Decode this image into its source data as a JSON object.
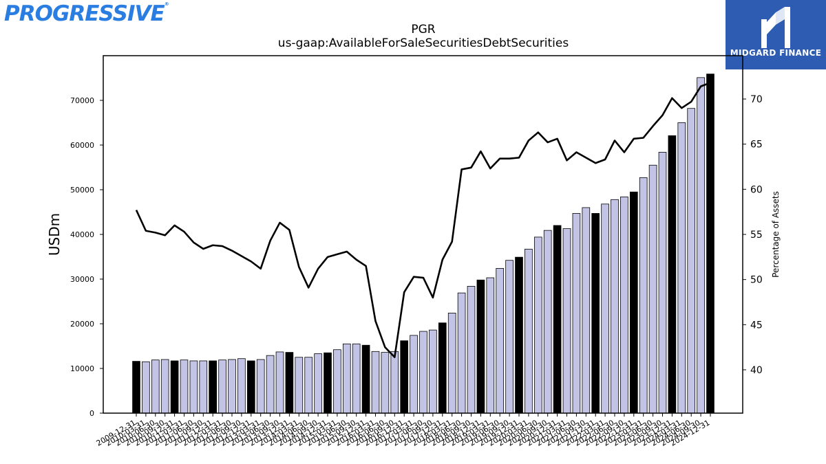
{
  "header": {
    "logo_text": "PROGRESSIVE",
    "badge_text": "MIDGARD FINANCE"
  },
  "chart_data": {
    "type": "bar",
    "title": "PGR",
    "subtitle": "us-gaap:AvailableForSaleSecuritiesDebtSecurities",
    "ylabel": "USDm",
    "y2label": "Percentage of Assets",
    "ylim": [
      0,
      80000
    ],
    "y2lim": [
      35.2,
      74.8
    ],
    "yticks": [
      0,
      10000,
      20000,
      30000,
      40000,
      50000,
      60000,
      70000
    ],
    "y2ticks": [
      40,
      45,
      50,
      55,
      60,
      65,
      70
    ],
    "grid": false,
    "legend": "none",
    "categories": [
      "2009-12-31",
      "2010-03-31",
      "2010-06-30",
      "2010-09-30",
      "2010-12-31",
      "2011-03-31",
      "2011-06-30",
      "2011-09-30",
      "2011-12-31",
      "2012-03-31",
      "2012-06-30",
      "2012-09-30",
      "2012-12-31",
      "2013-03-31",
      "2013-06-30",
      "2013-09-30",
      "2013-12-31",
      "2014-03-31",
      "2014-06-30",
      "2014-09-30",
      "2014-12-31",
      "2015-03-31",
      "2015-06-30",
      "2015-09-30",
      "2015-12-31",
      "2016-03-31",
      "2016-06-30",
      "2016-09-30",
      "2016-12-31",
      "2017-03-31",
      "2017-06-30",
      "2017-09-30",
      "2017-12-31",
      "2018-03-31",
      "2018-06-30",
      "2018-09-30",
      "2018-12-31",
      "2019-03-31",
      "2019-06-30",
      "2019-09-30",
      "2019-12-31",
      "2020-03-31",
      "2020-06-30",
      "2020-09-30",
      "2020-12-31",
      "2021-03-31",
      "2021-06-30",
      "2021-09-30",
      "2021-12-31",
      "2022-03-31",
      "2022-06-30",
      "2022-09-30",
      "2022-12-31",
      "2023-03-31",
      "2023-06-30",
      "2023-09-30",
      "2023-12-31",
      "2024-03-31",
      "2024-06-30",
      "2024-09-30",
      "2024-12-31"
    ],
    "series": [
      {
        "kind": "bar",
        "axis": "left",
        "values": [
          11600,
          11500,
          11900,
          12000,
          11700,
          11900,
          11700,
          11700,
          11700,
          11900,
          12000,
          12200,
          11700,
          12000,
          12900,
          13700,
          13600,
          12500,
          12500,
          13300,
          13500,
          14200,
          15500,
          15500,
          15200,
          13800,
          13600,
          13800,
          16200,
          17400,
          18300,
          18600,
          20200,
          22400,
          26900,
          28400,
          29800,
          30300,
          32400,
          34200,
          34900,
          36700,
          39400,
          40900,
          42000,
          41300,
          44700,
          46000,
          44700,
          46800,
          47800,
          48400,
          49500,
          52700,
          55500,
          58400,
          62100,
          65000,
          68200,
          75100,
          75900
        ],
        "highlight_index_step": 4,
        "color": "#c3c3e6",
        "highlight_color": "#000000"
      },
      {
        "kind": "line",
        "axis": "right",
        "values": [
          57.7,
          55.4,
          55.2,
          54.9,
          56.0,
          55.3,
          54.1,
          53.4,
          53.8,
          53.7,
          53.2,
          52.6,
          52.0,
          51.2,
          54.3,
          56.3,
          55.5,
          51.4,
          49.1,
          51.2,
          52.5,
          52.8,
          53.1,
          52.2,
          51.5,
          45.4,
          42.5,
          41.4,
          48.6,
          50.3,
          50.2,
          48.0,
          52.2,
          54.2,
          62.2,
          62.4,
          64.2,
          62.3,
          63.4,
          63.4,
          63.5,
          65.4,
          66.3,
          65.2,
          65.6,
          63.2,
          64.1,
          63.5,
          62.9,
          63.3,
          65.4,
          64.1,
          65.6,
          65.7,
          67.0,
          68.2,
          70.1,
          69.0,
          69.7,
          71.4,
          71.8
        ],
        "color": "#000000"
      }
    ]
  }
}
